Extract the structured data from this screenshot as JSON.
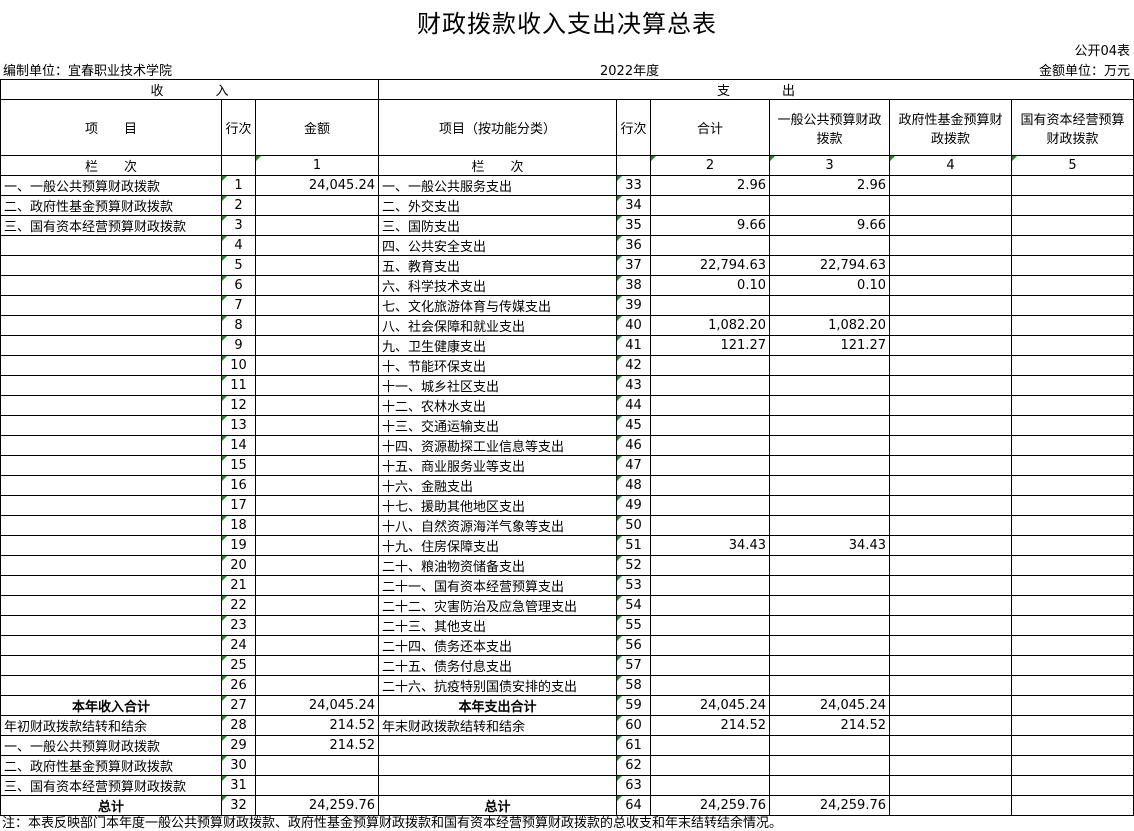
{
  "title": "财政拨款收入支出决算总表",
  "form_code": "公开04表",
  "unit_label": "编制单位：宜春职业技术学院",
  "year": "2022年度",
  "currency_unit": "金额单位：万元",
  "headers": {
    "income": "收　　　　入",
    "expense": "支　　　　出",
    "item": "项　　目",
    "line": "行次",
    "amount": "金额",
    "exp_item": "项目（按功能分类）",
    "exp_line": "行次",
    "total": "合计",
    "general": "一般公共预算财政拨款",
    "fund": "政府性基金预算财政拨款",
    "state": "国有资本经营预算财政拨款",
    "col_label": "栏　　次",
    "col_label2": "栏　　次",
    "col1": "1",
    "col2": "2",
    "col3": "3",
    "col4": "4",
    "col5": "5"
  },
  "rows": [
    {
      "in": "一、一般公共预算财政拨款",
      "in_no": "1",
      "in_amt": "24,045.24",
      "out": "一、一般公共服务支出",
      "out_no": "33",
      "total": "2.96",
      "general": "2.96"
    },
    {
      "in": "二、政府性基金预算财政拨款",
      "in_no": "2",
      "in_amt": "",
      "out": "二、外交支出",
      "out_no": "34",
      "total": "",
      "general": ""
    },
    {
      "in": "三、国有资本经营预算财政拨款",
      "in_no": "3",
      "in_amt": "",
      "out": "三、国防支出",
      "out_no": "35",
      "total": "9.66",
      "general": "9.66"
    },
    {
      "in": "",
      "in_no": "4",
      "in_amt": "",
      "out": "四、公共安全支出",
      "out_no": "36",
      "total": "",
      "general": ""
    },
    {
      "in": "",
      "in_no": "5",
      "in_amt": "",
      "out": "五、教育支出",
      "out_no": "37",
      "total": "22,794.63",
      "general": "22,794.63"
    },
    {
      "in": "",
      "in_no": "6",
      "in_amt": "",
      "out": "六、科学技术支出",
      "out_no": "38",
      "total": "0.10",
      "general": "0.10"
    },
    {
      "in": "",
      "in_no": "7",
      "in_amt": "",
      "out": "七、文化旅游体育与传媒支出",
      "out_no": "39",
      "total": "",
      "general": ""
    },
    {
      "in": "",
      "in_no": "8",
      "in_amt": "",
      "out": "八、社会保障和就业支出",
      "out_no": "40",
      "total": "1,082.20",
      "general": "1,082.20"
    },
    {
      "in": "",
      "in_no": "9",
      "in_amt": "",
      "out": "九、卫生健康支出",
      "out_no": "41",
      "total": "121.27",
      "general": "121.27"
    },
    {
      "in": "",
      "in_no": "10",
      "in_amt": "",
      "out": "十、节能环保支出",
      "out_no": "42",
      "total": "",
      "general": ""
    },
    {
      "in": "",
      "in_no": "11",
      "in_amt": "",
      "out": "十一、城乡社区支出",
      "out_no": "43",
      "total": "",
      "general": ""
    },
    {
      "in": "",
      "in_no": "12",
      "in_amt": "",
      "out": "十二、农林水支出",
      "out_no": "44",
      "total": "",
      "general": ""
    },
    {
      "in": "",
      "in_no": "13",
      "in_amt": "",
      "out": "十三、交通运输支出",
      "out_no": "45",
      "total": "",
      "general": ""
    },
    {
      "in": "",
      "in_no": "14",
      "in_amt": "",
      "out": "十四、资源勘探工业信息等支出",
      "out_no": "46",
      "total": "",
      "general": ""
    },
    {
      "in": "",
      "in_no": "15",
      "in_amt": "",
      "out": "十五、商业服务业等支出",
      "out_no": "47",
      "total": "",
      "general": ""
    },
    {
      "in": "",
      "in_no": "16",
      "in_amt": "",
      "out": "十六、金融支出",
      "out_no": "48",
      "total": "",
      "general": ""
    },
    {
      "in": "",
      "in_no": "17",
      "in_amt": "",
      "out": "十七、援助其他地区支出",
      "out_no": "49",
      "total": "",
      "general": ""
    },
    {
      "in": "",
      "in_no": "18",
      "in_amt": "",
      "out": "十八、自然资源海洋气象等支出",
      "out_no": "50",
      "total": "",
      "general": ""
    },
    {
      "in": "",
      "in_no": "19",
      "in_amt": "",
      "out": "十九、住房保障支出",
      "out_no": "51",
      "total": "34.43",
      "general": "34.43"
    },
    {
      "in": "",
      "in_no": "20",
      "in_amt": "",
      "out": "二十、粮油物资储备支出",
      "out_no": "52",
      "total": "",
      "general": ""
    },
    {
      "in": "",
      "in_no": "21",
      "in_amt": "",
      "out": "二十一、国有资本经营预算支出",
      "out_no": "53",
      "total": "",
      "general": ""
    },
    {
      "in": "",
      "in_no": "22",
      "in_amt": "",
      "out": "二十二、灾害防治及应急管理支出",
      "out_no": "54",
      "total": "",
      "general": ""
    },
    {
      "in": "",
      "in_no": "23",
      "in_amt": "",
      "out": "二十三、其他支出",
      "out_no": "55",
      "total": "",
      "general": ""
    },
    {
      "in": "",
      "in_no": "24",
      "in_amt": "",
      "out": "二十四、债务还本支出",
      "out_no": "56",
      "total": "",
      "general": ""
    },
    {
      "in": "",
      "in_no": "25",
      "in_amt": "",
      "out": "二十五、债务付息支出",
      "out_no": "57",
      "total": "",
      "general": ""
    },
    {
      "in": "",
      "in_no": "26",
      "in_amt": "",
      "out": "二十六、抗疫特别国债安排的支出",
      "out_no": "58",
      "total": "",
      "general": ""
    },
    {
      "in": "本年收入合计",
      "in_no": "27",
      "in_amt": "24,045.24",
      "out": "本年支出合计",
      "out_no": "59",
      "total": "24,045.24",
      "general": "24,045.24",
      "bold": true
    },
    {
      "in": "年初财政拨款结转和结余",
      "in_no": "28",
      "in_amt": "214.52",
      "out": "年末财政拨款结转和结余",
      "out_no": "60",
      "total": "214.52",
      "general": "214.52"
    },
    {
      "in": "一、一般公共预算财政拨款",
      "in_no": "29",
      "in_amt": "214.52",
      "out": "",
      "out_no": "61",
      "total": "",
      "general": ""
    },
    {
      "in": "二、政府性基金预算财政拨款",
      "in_no": "30",
      "in_amt": "",
      "out": "",
      "out_no": "62",
      "total": "",
      "general": ""
    },
    {
      "in": "三、国有资本经营预算财政拨款",
      "in_no": "31",
      "in_amt": "",
      "out": "",
      "out_no": "63",
      "total": "",
      "general": ""
    },
    {
      "in": "总计",
      "in_no": "32",
      "in_amt": "24,259.76",
      "out": "总计",
      "out_no": "64",
      "total": "24,259.76",
      "general": "24,259.76",
      "bold": true
    }
  ],
  "note": "注：本表反映部门本年度一般公共预算财政拨款、政府性基金预算财政拨款和国有资本经营预算财政拨款的总收支和年末结转结余情况。"
}
